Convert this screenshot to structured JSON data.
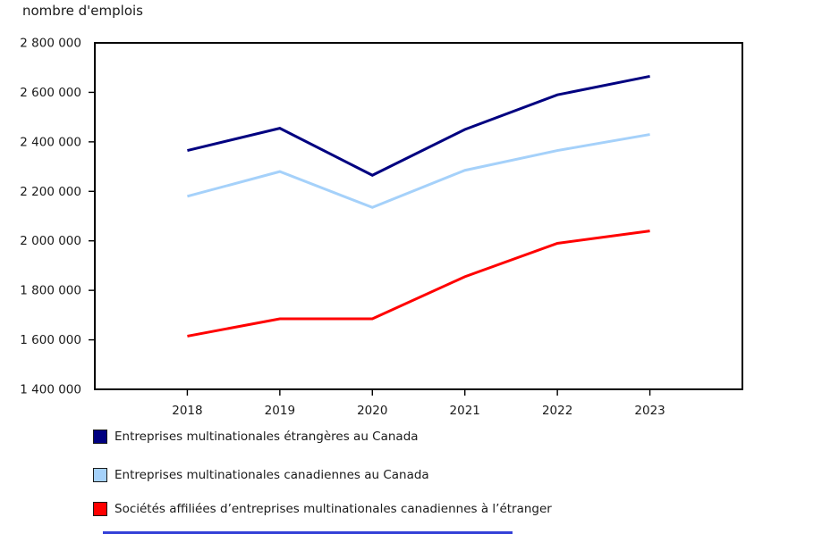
{
  "title": "nombre d'emplois",
  "chart_data": {
    "type": "line",
    "x": [
      "2018",
      "2019",
      "2020",
      "2021",
      "2022",
      "2023"
    ],
    "series": [
      {
        "name": "Entreprises multinationales étrangères au Canada",
        "color": "#000080",
        "values": [
          2365000,
          2455000,
          2265000,
          2450000,
          2590000,
          2665000
        ]
      },
      {
        "name": "Entreprises multinationales canadiennes au Canada",
        "color": "#a5d1fa",
        "values": [
          2180000,
          2280000,
          2135000,
          2285000,
          2365000,
          2430000
        ]
      },
      {
        "name": "Sociétés affiliées d’entreprises multinationales canadiennes à l’étranger",
        "color": "#ff0000",
        "values": [
          1615000,
          1685000,
          1685000,
          1855000,
          1990000,
          2040000
        ]
      }
    ],
    "ylabel": "nombre d'emplois",
    "xlabel": "",
    "ylim": [
      1400000,
      2800000
    ],
    "ytick_step": 200000,
    "ytick_labels_top_to_bottom": [
      "2 800 000",
      "2 600 000",
      "2 400 000",
      "2 200 000",
      "2 000 000",
      "1 800 000",
      "1 600 000",
      "1 400 000"
    ],
    "grid": false,
    "legend_position": "bottom-left",
    "axis_color": "#000000",
    "text_color": "#1a1a1a"
  }
}
